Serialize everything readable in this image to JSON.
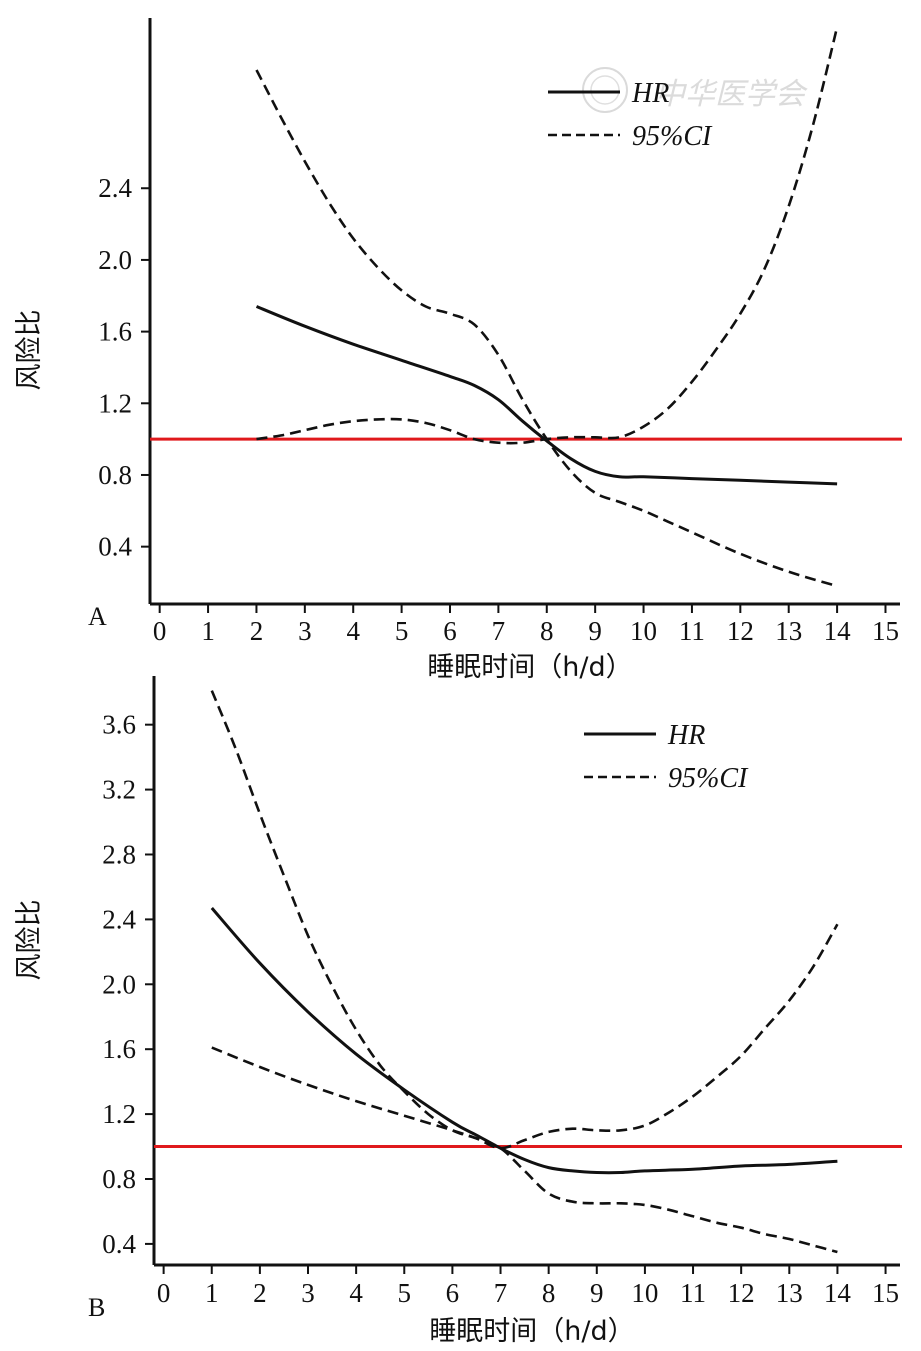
{
  "watermark": "中华医学会",
  "colors": {
    "hr": "#111111",
    "ci": "#111111",
    "reference": "#e0191c",
    "axis": "#111111"
  },
  "chart_data": [
    {
      "panel": "A",
      "type": "line",
      "xlabel": "睡眠时间（h/d）",
      "ylabel": "风险比",
      "xlim": [
        -0.2,
        15.3
      ],
      "ylim": [
        0.08,
        3.35
      ],
      "xticks": [
        "0",
        "1",
        "2",
        "3",
        "4",
        "5",
        "6",
        "7",
        "8",
        "9",
        "10",
        "11",
        "12",
        "13",
        "14",
        "15"
      ],
      "yticks": [
        "0.4",
        "0.8",
        "1.2",
        "1.6",
        "2.0",
        "2.4"
      ],
      "reference_line": 1.0,
      "legend": {
        "position": "top-right",
        "entries": [
          "HR",
          "95%CI"
        ]
      },
      "series": [
        {
          "name": "HR",
          "style": "solid",
          "x": [
            2,
            3,
            4,
            5,
            6,
            6.5,
            7,
            7.5,
            8,
            8.5,
            9,
            9.5,
            10,
            11,
            12,
            13,
            14
          ],
          "y": [
            1.74,
            1.63,
            1.53,
            1.44,
            1.35,
            1.3,
            1.22,
            1.1,
            0.99,
            0.89,
            0.82,
            0.79,
            0.79,
            0.78,
            0.77,
            0.76,
            0.75
          ]
        },
        {
          "name": "95%CI",
          "style": "dashed",
          "x": [
            2,
            2.5,
            3,
            3.5,
            4,
            4.5,
            5,
            5.5,
            6,
            6.5,
            7,
            7.5,
            8,
            8.5,
            9,
            9.5,
            10,
            10.5,
            11,
            12,
            13,
            14
          ],
          "y": [
            3.06,
            2.8,
            2.55,
            2.32,
            2.12,
            1.96,
            1.83,
            1.74,
            1.7,
            1.64,
            1.47,
            1.22,
            1.0,
            0.82,
            0.7,
            0.65,
            0.6,
            0.54,
            0.48,
            0.36,
            0.26,
            0.18
          ]
        },
        {
          "name": "",
          "style": "dashed",
          "x": [
            2,
            2.5,
            3,
            3.5,
            4,
            4.5,
            5,
            5.5,
            6,
            6.5,
            7,
            7.5,
            8,
            8.5,
            9,
            9.5,
            10,
            10.5,
            11,
            11.5,
            12,
            12.5,
            13,
            13.5,
            14
          ],
          "y": [
            1.0,
            1.02,
            1.05,
            1.08,
            1.1,
            1.11,
            1.11,
            1.09,
            1.05,
            1.0,
            0.98,
            0.98,
            1.0,
            1.01,
            1.01,
            1.01,
            1.07,
            1.17,
            1.32,
            1.5,
            1.7,
            1.95,
            2.3,
            2.75,
            3.3
          ]
        }
      ]
    },
    {
      "panel": "B",
      "type": "line",
      "xlabel": "睡眠时间（h/d）",
      "ylabel": "风险比",
      "xlim": [
        -0.2,
        15.3
      ],
      "ylim": [
        0.27,
        3.9
      ],
      "xticks": [
        "0",
        "1",
        "2",
        "3",
        "4",
        "5",
        "6",
        "7",
        "8",
        "9",
        "10",
        "11",
        "12",
        "13",
        "14",
        "15"
      ],
      "yticks": [
        "0.4",
        "0.8",
        "1.2",
        "1.6",
        "2.0",
        "2.4",
        "2.8",
        "3.2",
        "3.6"
      ],
      "reference_line": 1.0,
      "legend": {
        "position": "top-right",
        "entries": [
          "HR",
          "95%CI"
        ]
      },
      "series": [
        {
          "name": "HR",
          "style": "solid",
          "x": [
            1,
            2,
            3,
            4,
            5,
            6,
            6.5,
            7,
            7.5,
            8,
            8.5,
            9,
            9.5,
            10,
            11,
            12,
            13,
            14
          ],
          "y": [
            2.47,
            2.13,
            1.83,
            1.57,
            1.35,
            1.15,
            1.07,
            0.99,
            0.92,
            0.87,
            0.85,
            0.84,
            0.84,
            0.85,
            0.86,
            0.88,
            0.89,
            0.91
          ]
        },
        {
          "name": "95%CI",
          "style": "dashed",
          "x": [
            1,
            1.5,
            2,
            2.5,
            3,
            3.5,
            4,
            4.5,
            5,
            5.5,
            6,
            6.5,
            7,
            7.5,
            8,
            8.5,
            9,
            9.5,
            10,
            10.5,
            11,
            11.5,
            12,
            12.5,
            13,
            13.5,
            14
          ],
          "y": [
            3.81,
            3.45,
            3.05,
            2.67,
            2.3,
            1.99,
            1.72,
            1.5,
            1.34,
            1.2,
            1.1,
            1.05,
            0.99,
            0.85,
            0.71,
            0.66,
            0.65,
            0.65,
            0.64,
            0.61,
            0.57,
            0.53,
            0.5,
            0.46,
            0.43,
            0.39,
            0.35
          ]
        },
        {
          "name": "",
          "style": "dashed",
          "x": [
            1,
            2,
            3,
            4,
            5,
            6,
            6.5,
            7,
            7.5,
            8,
            8.5,
            9,
            9.5,
            10,
            10.5,
            11,
            11.5,
            12,
            12.5,
            13,
            13.5,
            14
          ],
          "y": [
            1.61,
            1.49,
            1.38,
            1.28,
            1.19,
            1.1,
            1.05,
            0.99,
            1.04,
            1.09,
            1.11,
            1.1,
            1.1,
            1.13,
            1.21,
            1.31,
            1.43,
            1.56,
            1.73,
            1.9,
            2.11,
            2.37
          ]
        }
      ]
    }
  ]
}
